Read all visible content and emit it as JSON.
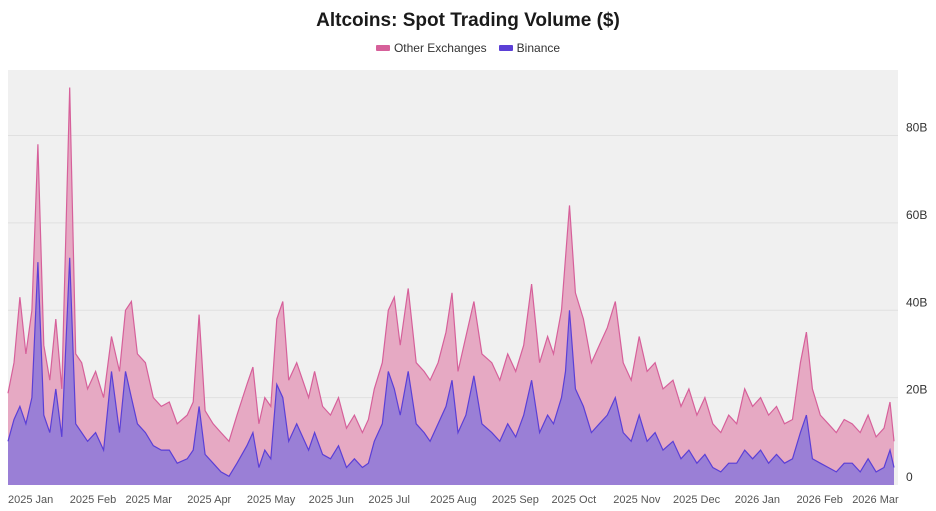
{
  "chart_data": {
    "type": "area",
    "title": "Altcoins: Spot Trading Volume ($)",
    "xlabel": "",
    "ylabel": "",
    "x_tick_labels": [
      "2025 Jan",
      "2025 Feb",
      "2025 Mar",
      "2025 Apr",
      "2025 May",
      "2025 Jun",
      "2025 Jul",
      "2025 Aug",
      "2025 Sep",
      "2025 Oct",
      "2025 Nov",
      "2025 Dec",
      "2026 Jan",
      "2026 Feb",
      "2026 Mar"
    ],
    "y_ticks": [
      0,
      20,
      40,
      60,
      80
    ],
    "y_tick_labels": [
      "0",
      "20B",
      "40B",
      "60B",
      "80B"
    ],
    "ylim": [
      0,
      95
    ],
    "y_unit": "B",
    "stacked": true,
    "grid": true,
    "legend_position": "top-center",
    "series": [
      {
        "name": "Other Exchanges",
        "color": "#d6609a",
        "fill": "#e6a9c3",
        "total_points": [
          [
            "2025-01-01",
            21
          ],
          [
            "2025-01-04",
            28
          ],
          [
            "2025-01-07",
            43
          ],
          [
            "2025-01-10",
            30
          ],
          [
            "2025-01-13",
            40
          ],
          [
            "2025-01-16",
            78
          ],
          [
            "2025-01-19",
            32
          ],
          [
            "2025-01-22",
            24
          ],
          [
            "2025-01-25",
            38
          ],
          [
            "2025-01-28",
            22
          ],
          [
            "2025-02-01",
            91
          ],
          [
            "2025-02-04",
            30
          ],
          [
            "2025-02-07",
            28
          ],
          [
            "2025-02-10",
            22
          ],
          [
            "2025-02-14",
            26
          ],
          [
            "2025-02-18",
            20
          ],
          [
            "2025-02-22",
            34
          ],
          [
            "2025-02-26",
            26
          ],
          [
            "2025-03-01",
            40
          ],
          [
            "2025-03-04",
            42
          ],
          [
            "2025-03-07",
            30
          ],
          [
            "2025-03-11",
            28
          ],
          [
            "2025-03-15",
            20
          ],
          [
            "2025-03-19",
            18
          ],
          [
            "2025-03-23",
            19
          ],
          [
            "2025-03-27",
            14
          ],
          [
            "2025-04-01",
            16
          ],
          [
            "2025-04-04",
            19
          ],
          [
            "2025-04-07",
            39
          ],
          [
            "2025-04-10",
            17
          ],
          [
            "2025-04-14",
            14
          ],
          [
            "2025-04-18",
            12
          ],
          [
            "2025-04-22",
            10
          ],
          [
            "2025-04-26",
            16
          ],
          [
            "2025-05-01",
            23
          ],
          [
            "2025-05-04",
            27
          ],
          [
            "2025-05-07",
            14
          ],
          [
            "2025-05-10",
            20
          ],
          [
            "2025-05-13",
            18
          ],
          [
            "2025-05-16",
            38
          ],
          [
            "2025-05-19",
            42
          ],
          [
            "2025-05-22",
            24
          ],
          [
            "2025-05-26",
            28
          ],
          [
            "2025-06-01",
            20
          ],
          [
            "2025-06-04",
            26
          ],
          [
            "2025-06-08",
            18
          ],
          [
            "2025-06-12",
            16
          ],
          [
            "2025-06-16",
            20
          ],
          [
            "2025-06-20",
            13
          ],
          [
            "2025-06-24",
            16
          ],
          [
            "2025-06-28",
            12
          ],
          [
            "2025-07-01",
            15
          ],
          [
            "2025-07-04",
            22
          ],
          [
            "2025-07-08",
            28
          ],
          [
            "2025-07-11",
            40
          ],
          [
            "2025-07-14",
            43
          ],
          [
            "2025-07-17",
            32
          ],
          [
            "2025-07-21",
            45
          ],
          [
            "2025-07-25",
            28
          ],
          [
            "2025-07-29",
            26
          ],
          [
            "2025-08-01",
            24
          ],
          [
            "2025-08-05",
            28
          ],
          [
            "2025-08-09",
            35
          ],
          [
            "2025-08-12",
            44
          ],
          [
            "2025-08-15",
            26
          ],
          [
            "2025-08-19",
            34
          ],
          [
            "2025-08-23",
            42
          ],
          [
            "2025-08-27",
            30
          ],
          [
            "2025-09-01",
            28
          ],
          [
            "2025-09-05",
            24
          ],
          [
            "2025-09-09",
            30
          ],
          [
            "2025-09-13",
            26
          ],
          [
            "2025-09-17",
            32
          ],
          [
            "2025-09-21",
            46
          ],
          [
            "2025-09-25",
            28
          ],
          [
            "2025-09-29",
            34
          ],
          [
            "2025-10-02",
            30
          ],
          [
            "2025-10-06",
            40
          ],
          [
            "2025-10-08",
            52
          ],
          [
            "2025-10-10",
            64
          ],
          [
            "2025-10-13",
            44
          ],
          [
            "2025-10-17",
            38
          ],
          [
            "2025-10-21",
            28
          ],
          [
            "2025-10-25",
            32
          ],
          [
            "2025-10-29",
            36
          ],
          [
            "2025-11-02",
            42
          ],
          [
            "2025-11-06",
            28
          ],
          [
            "2025-11-10",
            24
          ],
          [
            "2025-11-14",
            34
          ],
          [
            "2025-11-18",
            26
          ],
          [
            "2025-11-22",
            28
          ],
          [
            "2025-11-26",
            22
          ],
          [
            "2025-12-01",
            24
          ],
          [
            "2025-12-05",
            18
          ],
          [
            "2025-12-09",
            22
          ],
          [
            "2025-12-13",
            16
          ],
          [
            "2025-12-17",
            20
          ],
          [
            "2025-12-21",
            14
          ],
          [
            "2025-12-25",
            12
          ],
          [
            "2025-12-29",
            16
          ],
          [
            "2026-01-02",
            14
          ],
          [
            "2026-01-06",
            22
          ],
          [
            "2026-01-10",
            18
          ],
          [
            "2026-01-14",
            20
          ],
          [
            "2026-01-18",
            16
          ],
          [
            "2026-01-22",
            18
          ],
          [
            "2026-01-26",
            14
          ],
          [
            "2026-01-30",
            15
          ],
          [
            "2026-02-03",
            28
          ],
          [
            "2026-02-06",
            35
          ],
          [
            "2026-02-09",
            22
          ],
          [
            "2026-02-13",
            16
          ],
          [
            "2026-02-17",
            14
          ],
          [
            "2026-02-21",
            12
          ],
          [
            "2026-02-25",
            15
          ],
          [
            "2026-03-01",
            14
          ],
          [
            "2026-03-05",
            12
          ],
          [
            "2026-03-09",
            16
          ],
          [
            "2026-03-13",
            11
          ],
          [
            "2026-03-17",
            13
          ],
          [
            "2026-03-20",
            19
          ],
          [
            "2026-03-22",
            10
          ]
        ]
      },
      {
        "name": "Binance",
        "color": "#5b3fd6",
        "fill": "#9a7fd6",
        "points": [
          [
            "2025-01-01",
            10
          ],
          [
            "2025-01-04",
            15
          ],
          [
            "2025-01-07",
            18
          ],
          [
            "2025-01-10",
            14
          ],
          [
            "2025-01-13",
            20
          ],
          [
            "2025-01-16",
            51
          ],
          [
            "2025-01-19",
            16
          ],
          [
            "2025-01-22",
            12
          ],
          [
            "2025-01-25",
            22
          ],
          [
            "2025-01-28",
            11
          ],
          [
            "2025-02-01",
            52
          ],
          [
            "2025-02-04",
            14
          ],
          [
            "2025-02-07",
            12
          ],
          [
            "2025-02-10",
            10
          ],
          [
            "2025-02-14",
            12
          ],
          [
            "2025-02-18",
            8
          ],
          [
            "2025-02-22",
            26
          ],
          [
            "2025-02-26",
            12
          ],
          [
            "2025-03-01",
            26
          ],
          [
            "2025-03-04",
            20
          ],
          [
            "2025-03-07",
            14
          ],
          [
            "2025-03-11",
            12
          ],
          [
            "2025-03-15",
            9
          ],
          [
            "2025-03-19",
            8
          ],
          [
            "2025-03-23",
            8
          ],
          [
            "2025-03-27",
            5
          ],
          [
            "2025-04-01",
            6
          ],
          [
            "2025-04-04",
            8
          ],
          [
            "2025-04-07",
            18
          ],
          [
            "2025-04-10",
            7
          ],
          [
            "2025-04-14",
            5
          ],
          [
            "2025-04-18",
            3
          ],
          [
            "2025-04-22",
            2
          ],
          [
            "2025-04-26",
            5
          ],
          [
            "2025-05-01",
            9
          ],
          [
            "2025-05-04",
            12
          ],
          [
            "2025-05-07",
            4
          ],
          [
            "2025-05-10",
            8
          ],
          [
            "2025-05-13",
            6
          ],
          [
            "2025-05-16",
            23
          ],
          [
            "2025-05-19",
            20
          ],
          [
            "2025-05-22",
            10
          ],
          [
            "2025-05-26",
            14
          ],
          [
            "2025-06-01",
            8
          ],
          [
            "2025-06-04",
            12
          ],
          [
            "2025-06-08",
            7
          ],
          [
            "2025-06-12",
            6
          ],
          [
            "2025-06-16",
            9
          ],
          [
            "2025-06-20",
            4
          ],
          [
            "2025-06-24",
            6
          ],
          [
            "2025-06-28",
            4
          ],
          [
            "2025-07-01",
            5
          ],
          [
            "2025-07-04",
            10
          ],
          [
            "2025-07-08",
            14
          ],
          [
            "2025-07-11",
            26
          ],
          [
            "2025-07-14",
            22
          ],
          [
            "2025-07-17",
            16
          ],
          [
            "2025-07-21",
            26
          ],
          [
            "2025-07-25",
            14
          ],
          [
            "2025-07-29",
            12
          ],
          [
            "2025-08-01",
            10
          ],
          [
            "2025-08-05",
            14
          ],
          [
            "2025-08-09",
            18
          ],
          [
            "2025-08-12",
            24
          ],
          [
            "2025-08-15",
            12
          ],
          [
            "2025-08-19",
            16
          ],
          [
            "2025-08-23",
            25
          ],
          [
            "2025-08-27",
            14
          ],
          [
            "2025-09-01",
            12
          ],
          [
            "2025-09-05",
            10
          ],
          [
            "2025-09-09",
            14
          ],
          [
            "2025-09-13",
            11
          ],
          [
            "2025-09-17",
            16
          ],
          [
            "2025-09-21",
            24
          ],
          [
            "2025-09-25",
            12
          ],
          [
            "2025-09-29",
            16
          ],
          [
            "2025-10-02",
            14
          ],
          [
            "2025-10-06",
            20
          ],
          [
            "2025-10-08",
            26
          ],
          [
            "2025-10-10",
            40
          ],
          [
            "2025-10-13",
            22
          ],
          [
            "2025-10-17",
            18
          ],
          [
            "2025-10-21",
            12
          ],
          [
            "2025-10-25",
            14
          ],
          [
            "2025-10-29",
            16
          ],
          [
            "2025-11-02",
            20
          ],
          [
            "2025-11-06",
            12
          ],
          [
            "2025-11-10",
            10
          ],
          [
            "2025-11-14",
            16
          ],
          [
            "2025-11-18",
            10
          ],
          [
            "2025-11-22",
            12
          ],
          [
            "2025-11-26",
            8
          ],
          [
            "2025-12-01",
            10
          ],
          [
            "2025-12-05",
            6
          ],
          [
            "2025-12-09",
            8
          ],
          [
            "2025-12-13",
            5
          ],
          [
            "2025-12-17",
            7
          ],
          [
            "2025-12-21",
            4
          ],
          [
            "2025-12-25",
            3
          ],
          [
            "2025-12-29",
            5
          ],
          [
            "2026-01-02",
            5
          ],
          [
            "2026-01-06",
            8
          ],
          [
            "2026-01-10",
            6
          ],
          [
            "2026-01-14",
            8
          ],
          [
            "2026-01-18",
            5
          ],
          [
            "2026-01-22",
            7
          ],
          [
            "2026-01-26",
            5
          ],
          [
            "2026-01-30",
            6
          ],
          [
            "2026-02-03",
            12
          ],
          [
            "2026-02-06",
            16
          ],
          [
            "2026-02-09",
            6
          ],
          [
            "2026-02-13",
            5
          ],
          [
            "2026-02-17",
            4
          ],
          [
            "2026-02-21",
            3
          ],
          [
            "2026-02-25",
            5
          ],
          [
            "2026-03-01",
            5
          ],
          [
            "2026-03-05",
            3
          ],
          [
            "2026-03-09",
            6
          ],
          [
            "2026-03-13",
            3
          ],
          [
            "2026-03-17",
            4
          ],
          [
            "2026-03-20",
            8
          ],
          [
            "2026-03-22",
            4
          ]
        ]
      }
    ]
  }
}
